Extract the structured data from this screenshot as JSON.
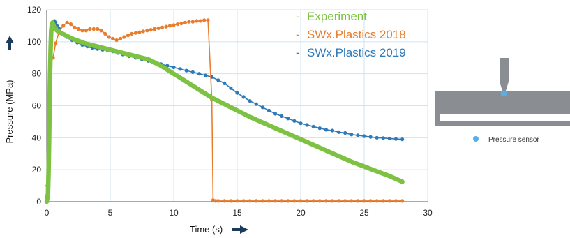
{
  "chart_data": {
    "type": "line",
    "title": "",
    "xlabel": "Time (s)",
    "ylabel": "Pressure (MPa)",
    "xlim": [
      0,
      30
    ],
    "ylim": [
      0,
      120
    ],
    "x_ticks": [
      0,
      5,
      10,
      15,
      20,
      25,
      30
    ],
    "y_ticks": [
      0,
      20,
      40,
      60,
      80,
      100,
      120
    ],
    "grid": true,
    "legend_position": "top-right",
    "series": [
      {
        "name": "Experiment",
        "color": "#7dc242",
        "style": "thick-line",
        "x": [
          0.0,
          0.1,
          0.15,
          0.2,
          0.25,
          0.3,
          0.35,
          0.4,
          0.45,
          0.5,
          0.6,
          0.8,
          1.0,
          1.5,
          2,
          3,
          4,
          5,
          6,
          7,
          8,
          9,
          10,
          11,
          12,
          13,
          14,
          15,
          16,
          17,
          18,
          19,
          20,
          21,
          22,
          23,
          24,
          25,
          26,
          27,
          28
        ],
        "y": [
          0,
          5,
          20,
          45,
          75,
          95,
          107,
          111,
          112,
          111,
          109,
          107,
          106,
          104,
          102,
          99,
          97,
          95,
          93,
          91,
          89,
          85,
          80,
          75,
          70,
          65,
          61,
          57,
          53,
          49.5,
          46,
          42.5,
          39,
          35.5,
          32,
          28.5,
          25,
          22,
          19,
          16,
          12.5
        ]
      },
      {
        "name": "SWx.Plastics 2018",
        "color": "#e87d2d",
        "style": "line-markers",
        "x": [
          0.0,
          0.05,
          0.1,
          0.15,
          0.2,
          0.25,
          0.3,
          0.4,
          0.5,
          0.7,
          1.0,
          1.3,
          1.6,
          1.9,
          2.2,
          2.5,
          2.8,
          3.1,
          3.4,
          3.7,
          4.0,
          4.3,
          4.6,
          4.9,
          5.2,
          5.5,
          5.8,
          6.1,
          6.4,
          6.7,
          7.0,
          7.3,
          7.6,
          7.9,
          8.2,
          8.5,
          8.8,
          9.1,
          9.4,
          9.7,
          10.0,
          10.3,
          10.6,
          10.9,
          11.2,
          11.5,
          11.8,
          12.1,
          12.4,
          12.7,
          13.0,
          13.1,
          13.3,
          13.5,
          14.0,
          14.5,
          15.0,
          15.5,
          16.0,
          16.5,
          17.0,
          17.5,
          18.0,
          18.5,
          19.0,
          19.5,
          20.0,
          20.5,
          21.0,
          21.5,
          22.0,
          22.5,
          23.0,
          23.5,
          24.0,
          24.5,
          25.0,
          25.5,
          26.0,
          26.5,
          27.0,
          27.5,
          28.0
        ],
        "y": [
          1,
          4,
          9,
          13,
          40,
          79,
          87,
          90,
          90,
          99,
          107,
          110,
          112,
          111,
          109,
          108,
          107,
          107,
          108,
          108,
          108,
          107,
          105,
          103,
          102,
          101,
          102,
          103,
          104,
          105,
          105.5,
          106,
          106.5,
          107,
          107.5,
          108,
          108.5,
          109,
          109.5,
          110,
          110.5,
          111,
          111.5,
          112,
          112.5,
          112.5,
          113,
          113,
          113.5,
          113.5,
          64,
          1,
          0.5,
          0.5,
          0.5,
          0.5,
          0.5,
          0.5,
          0.5,
          0.5,
          0.5,
          0.5,
          0.5,
          0.5,
          0.5,
          0.5,
          0.5,
          0.5,
          0.5,
          0.5,
          0.5,
          0.5,
          0.5,
          0.5,
          0.5,
          0.5,
          0.5,
          0.5,
          0.5,
          0.5,
          0.5,
          0.5,
          0.5
        ]
      },
      {
        "name": "SWx.Plastics 2019",
        "color": "#2e79b8",
        "style": "line-markers",
        "x": [
          0.0,
          0.05,
          0.1,
          0.15,
          0.2,
          0.25,
          0.3,
          0.35,
          0.4,
          0.45,
          0.5,
          0.6,
          0.7,
          0.8,
          1.0,
          1.3,
          1.6,
          2.0,
          2.4,
          2.8,
          3.2,
          3.6,
          4.0,
          4.4,
          4.8,
          5.2,
          5.6,
          6.0,
          6.5,
          7.0,
          7.5,
          8.0,
          8.5,
          9.0,
          9.5,
          10.0,
          10.5,
          11.0,
          11.5,
          12.0,
          12.5,
          13.0,
          13.5,
          14.0,
          14.5,
          15.0,
          15.5,
          16.0,
          16.5,
          17.0,
          17.5,
          18.0,
          18.5,
          19.0,
          19.5,
          20.0,
          20.5,
          21.0,
          21.5,
          22.0,
          22.5,
          23.0,
          23.5,
          24.0,
          24.5,
          25.0,
          25.5,
          26.0,
          26.5,
          27.0,
          27.5,
          28.0
        ],
        "y": [
          2,
          10,
          20,
          35,
          59,
          80,
          92,
          100,
          107,
          110,
          112,
          113,
          112,
          110,
          108,
          105,
          103,
          101,
          99.5,
          98,
          97,
          96,
          95.5,
          95,
          94.5,
          94,
          93,
          92,
          91,
          90,
          89,
          88,
          87,
          86,
          85,
          84,
          83,
          82,
          81,
          80,
          79,
          78,
          76,
          74,
          71,
          68,
          65.5,
          63,
          61,
          59,
          57,
          55,
          53.5,
          52,
          50.5,
          49,
          48,
          47,
          46,
          45,
          44.5,
          43.5,
          43,
          42,
          41.5,
          41,
          40.5,
          40,
          39.8,
          39.5,
          39.2,
          39
        ]
      }
    ]
  },
  "diagram": {
    "sensor_label": "Pressure sensor",
    "colors": {
      "body": "#8a8d91",
      "body_dark": "#6f7276",
      "sensor": "#5aaee6"
    }
  },
  "colors": {
    "grid": "#cfe4f1",
    "axis": "#555555",
    "arrow": "#1b3a5c"
  }
}
